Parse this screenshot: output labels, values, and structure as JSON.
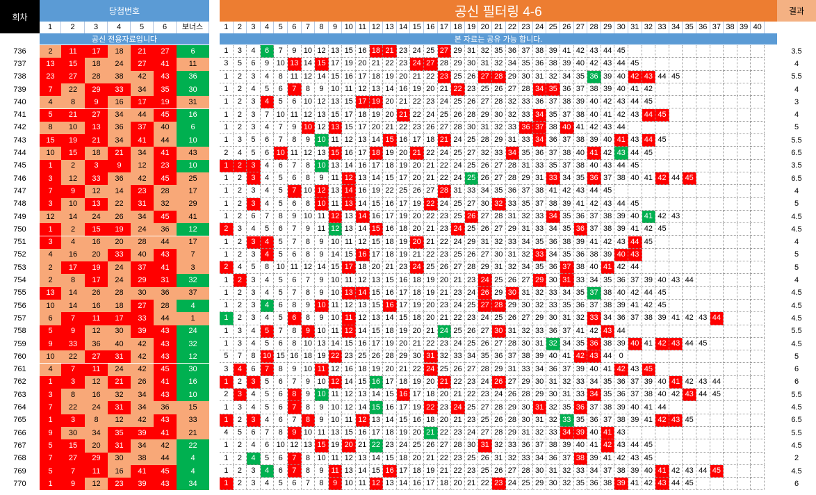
{
  "header": {
    "round_label": "회차",
    "winning_label": "당첨번호",
    "title": "공신 필터링 4-6",
    "result_label": "결과",
    "win_cols": [
      "1",
      "2",
      "3",
      "4",
      "5",
      "6",
      "보너스"
    ],
    "filter_max": 40,
    "left_banner": "공신 전용자료입니다",
    "right_banner": "본 자료는 공유 가능 합니다."
  },
  "colors": {
    "black": "#000000",
    "blue_header": "#5b9bd5",
    "orange_header": "#ed7d31",
    "result_header": "#f4b183",
    "red": "#ff0000",
    "green": "#00b050",
    "dark_green": "#008000",
    "salmon": "#f8a878"
  },
  "rows": [
    {
      "round": "736",
      "nums": [
        "2",
        "11",
        "17",
        "18",
        "21",
        "27"
      ],
      "bonus": "6",
      "filter": "1 3 4 6 7 9 10 12 13 15 16 18 21 23 24 25 27 29 31 32 35 36 37 38 39 41 42 43 44 45",
      "result": "3.5"
    },
    {
      "round": "737",
      "nums": [
        "13",
        "15",
        "18",
        "24",
        "27",
        "41"
      ],
      "bonus": "11",
      "filter": "3 5 6 9 10 13 14 15 17 19 20 21 22 23 24 27 28 29 30 31 32 34 35 36 38 39 40 42 43 44 45",
      "result": "4"
    },
    {
      "round": "738",
      "nums": [
        "23",
        "27",
        "28",
        "38",
        "42",
        "43"
      ],
      "bonus": "36",
      "filter": "1 2 3 4 8 11 12 14 15 16 17 18 19 20 21 22 23 25 26 27 28 29 30 31 32 34 35 36 39 40 42 43 44 45",
      "result": "5.5"
    },
    {
      "round": "739",
      "nums": [
        "7",
        "22",
        "29",
        "33",
        "34",
        "35"
      ],
      "bonus": "30",
      "filter": "1 2 4 5 6 7 8 9 10 11 12 13 14 16 19 20 21 22 23 25 26 27 28 34 35 36 37 38 39 40 41 42",
      "result": "4"
    },
    {
      "round": "740",
      "nums": [
        "4",
        "8",
        "9",
        "16",
        "17",
        "19"
      ],
      "bonus": "31",
      "filter": "1 2 3 4 5 6 10 12 13 15 17 19 20 21 22 23 24 25 26 27 28 32 33 36 37 38 39 40 42 43 44 45",
      "result": "3"
    },
    {
      "round": "741",
      "nums": [
        "5",
        "21",
        "27",
        "34",
        "44",
        "45"
      ],
      "bonus": "16",
      "filter": "1 2 3 7 10 11 12 13 15 17 18 19 20 21 22 24 25 26 28 29 30 32 33 34 35 37 38 40 41 42 43 44 45",
      "result": "4"
    },
    {
      "round": "742",
      "nums": [
        "8",
        "10",
        "13",
        "36",
        "37",
        "40"
      ],
      "bonus": "6",
      "filter": "1 2 3 4 7 9 10 12 13 15 17 20 21 22 23 26 27 28 30 31 32 33 36 37 38 40 41 42 43 44",
      "result": "5"
    },
    {
      "round": "743",
      "nums": [
        "15",
        "19",
        "21",
        "34",
        "41",
        "44"
      ],
      "bonus": "10",
      "filter": "1 3 5 6 7 8 9 10 11 12 13 14 15 16 17 18 21 24 25 28 29 31 33 34 36 37 38 39 40 41 43 44 45",
      "result": "5.5"
    },
    {
      "round": "744",
      "nums": [
        "10",
        "15",
        "18",
        "21",
        "34",
        "41"
      ],
      "bonus": "43",
      "filter": "2 4 5 6 10 11 12 13 15 16 17 18 19 20 21 22 24 25 27 32 33 34 35 36 37 38 40 41 42 43 44 45",
      "result": "6.5"
    },
    {
      "round": "745",
      "nums": [
        "1",
        "2",
        "3",
        "9",
        "12",
        "23"
      ],
      "bonus": "10",
      "filter": "1 2 3 4 6 7 8 10 13 14 16 17 18 19 20 21 22 24 25 26 27 28 31 33 35 37 38 40 43 44 45",
      "result": "3.5"
    },
    {
      "round": "746",
      "nums": [
        "3",
        "12",
        "33",
        "36",
        "42",
        "45"
      ],
      "bonus": "25",
      "filter": "1 2 3 4 5 6 8 9 11 12 13 14 15 17 20 21 22 24 25 26 27 28 29 31 33 34 35 36 37 38 40 41 42 44 45",
      "result": "6.5"
    },
    {
      "round": "747",
      "nums": [
        "7",
        "9",
        "12",
        "14",
        "23",
        "28"
      ],
      "bonus": "17",
      "filter": "1 2 3 4 5 7 10 12 13 14 16 19 22 25 26 27 28 31 33 34 35 36 37 38 41 42 43 44 45",
      "result": "4"
    },
    {
      "round": "748",
      "nums": [
        "3",
        "10",
        "13",
        "22",
        "31",
        "32"
      ],
      "bonus": "29",
      "filter": "1 2 3 4 5 6 8 10 11 13 14 15 16 17 19 22 24 25 27 30 32 33 35 37 38 39 41 42 43 44 45",
      "result": "5"
    },
    {
      "round": "749",
      "nums": [
        "12",
        "14",
        "24",
        "26",
        "34",
        "45"
      ],
      "bonus": "41",
      "filter": "1 2 6 7 8 9 10 11 12 13 14 16 17 19 20 22 23 25 26 27 28 31 32 33 34 35 36 37 38 39 40 41 42 43",
      "result": "4.5"
    },
    {
      "round": "750",
      "nums": [
        "1",
        "2",
        "15",
        "19",
        "24",
        "36"
      ],
      "bonus": "12",
      "filter": "2 3 4 5 6 7 9 11 12 13 14 15 16 18 20 21 23 24 25 26 27 29 31 33 34 35 36 37 38 39 41 42 45",
      "result": "4.5"
    },
    {
      "round": "751",
      "nums": [
        "3",
        "4",
        "16",
        "20",
        "28",
        "44"
      ],
      "bonus": "17",
      "filter": "1 2 3 4 5 7 8 9 10 11 12 15 18 19 20 21 22 24 29 31 32 33 34 35 36 38 39 41 42 43 44 45",
      "result": "4"
    },
    {
      "round": "752",
      "nums": [
        "4",
        "16",
        "20",
        "33",
        "40",
        "43"
      ],
      "bonus": "7",
      "filter": "1 2 3 4 5 6 8 9 14 15 16 17 18 19 21 22 23 25 26 27 30 31 32 33 34 35 36 38 39 40 43",
      "result": "5"
    },
    {
      "round": "753",
      "nums": [
        "2",
        "17",
        "19",
        "24",
        "37",
        "41"
      ],
      "bonus": "3",
      "filter": "2 4 5 8 10 11 12 14 15 17 18 20 21 23 24 25 26 27 28 29 31 32 34 35 36 37 38 40 41 42 44",
      "result": "5"
    },
    {
      "round": "754",
      "nums": [
        "2",
        "8",
        "17",
        "24",
        "29",
        "31"
      ],
      "bonus": "32",
      "filter": "1 2 3 4 5 6 7 9 10 11 12 13 15 16 18 19 20 21 23 24 25 26 27 29 30 31 33 34 35 36 37 39 40 43 44",
      "result": "4"
    },
    {
      "round": "755",
      "nums": [
        "13",
        "14",
        "26",
        "28",
        "30",
        "36"
      ],
      "bonus": "37",
      "filter": "1 2 3 4 5 7 8 9 10 13 14 15 16 17 18 19 21 23 24 26 29 30 31 32 33 34 35 37 38 40 42 44 45",
      "result": "4.5"
    },
    {
      "round": "756",
      "nums": [
        "10",
        "14",
        "16",
        "18",
        "27",
        "28"
      ],
      "bonus": "4",
      "filter": "1 2 3 4 6 8 9 10 11 12 13 15 16 17 19 20 23 24 25 27 28 29 30 32 33 35 36 37 38 39 41 42 45",
      "result": "4.5"
    },
    {
      "round": "757",
      "nums": [
        "6",
        "7",
        "11",
        "17",
        "33",
        "44"
      ],
      "bonus": "1",
      "filter": "1 2 3 4 5 6 8 9 10 11 12 13 14 15 18 20 21 22 23 24 25 26 27 29 30 31 32 33 34 36 37 38 39 41 42 43 44",
      "result": "4.5"
    },
    {
      "round": "758",
      "nums": [
        "5",
        "9",
        "12",
        "30",
        "39",
        "43"
      ],
      "bonus": "24",
      "filter": "1 3 4 5 7 8 9 10 11 12 14 15 18 19 20 21 24 25 26 27 30 31 32 33 36 37 41 42 43 44",
      "result": "5.5"
    },
    {
      "round": "759",
      "nums": [
        "9",
        "33",
        "36",
        "40",
        "42",
        "43"
      ],
      "bonus": "32",
      "filter": "1 3 4 5 6 8 10 13 14 15 16 17 19 20 21 22 23 24 25 26 27 28 30 31 32 34 35 36 38 39 40 41 42 43 44 45",
      "result": "4.5"
    },
    {
      "round": "760",
      "nums": [
        "10",
        "22",
        "27",
        "31",
        "42",
        "43"
      ],
      "bonus": "12",
      "filter": "5 7 8 10 15 16 18 19 22 23 25 26 28 29 30 31 32 33 34 35 36 37 38 39 40 41 42 43 44 0",
      "result": "5"
    },
    {
      "round": "761",
      "nums": [
        "4",
        "7",
        "11",
        "24",
        "42",
        "45"
      ],
      "bonus": "30",
      "filter": "3 4 6 7 8 9 10 11 12 16 18 19 20 21 22 24 25 26 27 28 29 31 33 34 36 37 39 40 41 42 43 45",
      "result": "6"
    },
    {
      "round": "762",
      "nums": [
        "1",
        "3",
        "12",
        "21",
        "26",
        "41"
      ],
      "bonus": "16",
      "filter": "1 2 3 5 6 7 9 10 12 14 15 16 17 18 19 20 21 22 23 24 26 27 29 30 31 32 33 34 35 36 37 39 40 41 42 43 44",
      "result": "6"
    },
    {
      "round": "763",
      "nums": [
        "3",
        "8",
        "16",
        "32",
        "34",
        "43"
      ],
      "bonus": "10",
      "filter": "2 3 4 5 6 8 9 10 11 12 13 14 15 16 17 18 20 21 22 23 24 26 28 29 30 31 33 34 35 36 37 38 40 42 43 44 45",
      "result": "5.5"
    },
    {
      "round": "764",
      "nums": [
        "7",
        "22",
        "24",
        "31",
        "34",
        "36"
      ],
      "bonus": "15",
      "filter": "1 3 4 5 6 7 8 9 10 12 14 15 16 17 19 22 23 24 25 27 28 29 30 31 32 35 36 37 38 39 40 41 44",
      "result": "4.5"
    },
    {
      "round": "765",
      "nums": [
        "1",
        "3",
        "8",
        "12",
        "42",
        "43"
      ],
      "bonus": "33",
      "filter": "1 2 3 4 6 7 8 9 10 11 12 13 14 15 16 18 20 21 23 25 26 28 30 31 32 33 35 36 37 38 39 41 42 43 45",
      "result": "6.5"
    },
    {
      "round": "766",
      "nums": [
        "9",
        "30",
        "34",
        "35",
        "39",
        "41"
      ],
      "bonus": "21",
      "filter": "4 5 6 7 8 9 10 11 13 15 16 17 18 19 20 21 22 23 24 27 28 29 31 32 33 34 39 40 41 43",
      "result": "5.5"
    },
    {
      "round": "767",
      "nums": [
        "5",
        "15",
        "20",
        "31",
        "34",
        "42"
      ],
      "bonus": "22",
      "filter": "1 2 4 6 10 12 13 15 19 20 21 22 23 24 25 26 27 28 30 31 32 33 36 37 38 39 40 41 42 43 44 45",
      "result": "4.5"
    },
    {
      "round": "768",
      "nums": [
        "7",
        "27",
        "29",
        "30",
        "38",
        "44"
      ],
      "bonus": "4",
      "filter": "1 2 4 5 6 7 8 10 11 12 13 14 15 18 20 21 22 23 25 26 31 32 33 34 36 37 38 39 41 42 43 45",
      "result": "2"
    },
    {
      "round": "769",
      "nums": [
        "5",
        "7",
        "11",
        "16",
        "41",
        "45"
      ],
      "bonus": "4",
      "filter": "1 2 3 4 6 7 8 9 11 13 14 15 16 17 18 19 21 22 23 25 26 27 28 30 31 32 33 34 37 38 39 40 41 42 43 44 45",
      "result": "4.5"
    },
    {
      "round": "770",
      "nums": [
        "1",
        "9",
        "12",
        "23",
        "39",
        "43"
      ],
      "bonus": "34",
      "filter": "1 2 3 4 5 6 7 8 9 10 11 12 13 14 16 17 18 20 21 22 23 24 25 29 30 32 35 36 38 39 41 42 43 44 45",
      "result": "6"
    }
  ]
}
